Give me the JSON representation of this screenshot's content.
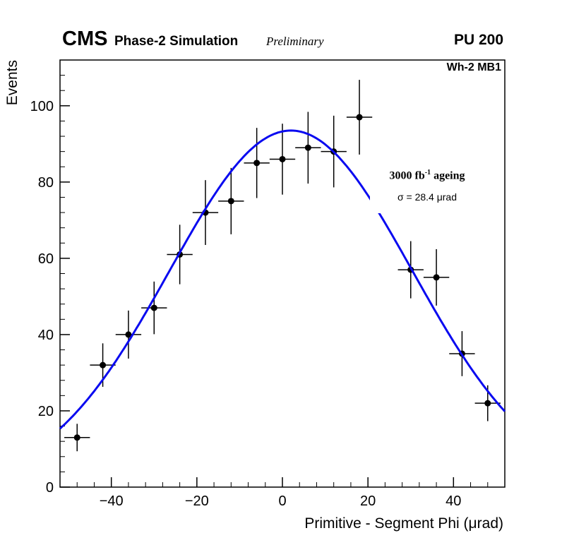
{
  "header": {
    "experiment": "CMS",
    "subtitle": "Phase-2 Simulation",
    "status": "Preliminary",
    "pileup": "PU 200"
  },
  "plot_label": "Wh-2 MB1",
  "annotation": {
    "line1_prefix": "3000 fb",
    "line1_sup": "-1",
    "line1_suffix": " ageing",
    "line2": "σ = 28.4 μrad"
  },
  "chart_data": {
    "type": "scatter",
    "title": "",
    "xlabel": "Primitive - Segment Phi (μrad)",
    "ylabel": "Events",
    "xlim": [
      -52,
      52
    ],
    "ylim": [
      0,
      112
    ],
    "xticks": [
      -40,
      -20,
      0,
      20,
      40
    ],
    "yticks": [
      0,
      20,
      40,
      60,
      80,
      100
    ],
    "minor_tick_step_x": 4,
    "minor_tick_step_y": 4,
    "grid": false,
    "legend_position": "none",
    "marker_color": "#000000",
    "marker_radius": 4.5,
    "points": {
      "x": [
        -48,
        -42,
        -36,
        -30,
        -24,
        -18,
        -12,
        -6,
        0,
        6,
        12,
        18,
        30,
        36,
        42,
        48
      ],
      "y": [
        13,
        32,
        40,
        47,
        61,
        72,
        75,
        85,
        86,
        89,
        88,
        97,
        57,
        55,
        35,
        22
      ],
      "xerr": 3,
      "yerr": [
        3.6,
        5.7,
        6.3,
        6.9,
        7.8,
        8.5,
        8.7,
        9.2,
        9.3,
        9.4,
        9.4,
        9.8,
        7.5,
        7.4,
        5.9,
        4.7
      ]
    },
    "fit": {
      "type": "gaussian",
      "amplitude": 93.5,
      "mean": 2,
      "sigma": 28.4,
      "color": "#0a0af0",
      "line_width": 3
    }
  }
}
